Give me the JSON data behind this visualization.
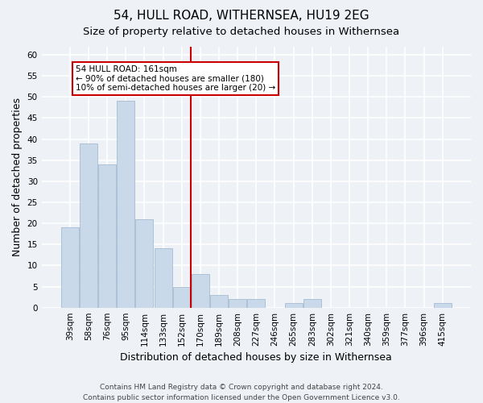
{
  "title": "54, HULL ROAD, WITHERNSEA, HU19 2EG",
  "subtitle": "Size of property relative to detached houses in Withernsea",
  "xlabel": "Distribution of detached houses by size in Withernsea",
  "ylabel": "Number of detached properties",
  "categories": [
    "39sqm",
    "58sqm",
    "76sqm",
    "95sqm",
    "114sqm",
    "133sqm",
    "152sqm",
    "170sqm",
    "189sqm",
    "208sqm",
    "227sqm",
    "246sqm",
    "265sqm",
    "283sqm",
    "302sqm",
    "321sqm",
    "340sqm",
    "359sqm",
    "377sqm",
    "396sqm",
    "415sqm"
  ],
  "values": [
    19,
    39,
    34,
    49,
    21,
    14,
    5,
    8,
    3,
    2,
    2,
    0,
    1,
    2,
    0,
    0,
    0,
    0,
    0,
    0,
    1
  ],
  "bar_color": "#c9d9ea",
  "bar_edge_color": "#9ab4cc",
  "bg_color": "#eef2f7",
  "grid_color": "#ffffff",
  "vline_x": 6.5,
  "vline_color": "#cc0000",
  "annotation_text": "54 HULL ROAD: 161sqm\n← 90% of detached houses are smaller (180)\n10% of semi-detached houses are larger (20) →",
  "annotation_box_facecolor": "#ffffff",
  "annotation_box_edgecolor": "#cc0000",
  "ylim": [
    0,
    62
  ],
  "yticks": [
    0,
    5,
    10,
    15,
    20,
    25,
    30,
    35,
    40,
    45,
    50,
    55,
    60
  ],
  "footer": "Contains HM Land Registry data © Crown copyright and database right 2024.\nContains public sector information licensed under the Open Government Licence v3.0.",
  "title_fontsize": 11,
  "subtitle_fontsize": 9.5,
  "tick_fontsize": 7.5,
  "ylabel_fontsize": 9,
  "xlabel_fontsize": 9,
  "annotation_fontsize": 7.5,
  "footer_fontsize": 6.5
}
